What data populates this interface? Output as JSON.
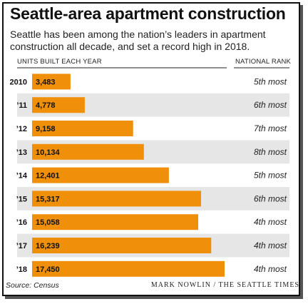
{
  "title": "Seattle-area apartment construction",
  "subtitle": "Seattle has been among the nation’s leaders in apartment construction all decade, and set a record high in 2018.",
  "headers": {
    "units": "UNITS BUILT EACH YEAR",
    "rank": "NATIONAL RANK"
  },
  "source": "Source: Census",
  "credit": "MARK NOWLIN / THE SEATTLE TIMES",
  "colors": {
    "bar": "#F0900A",
    "band": "#E6E6E6"
  },
  "chart_data": {
    "type": "bar",
    "orientation": "horizontal",
    "categories": [
      "2010",
      "’11",
      "’12",
      "’13",
      "’14",
      "’15",
      "’16",
      "’17",
      "’18"
    ],
    "values": [
      3483,
      4778,
      9158,
      10134,
      12401,
      15317,
      15058,
      16239,
      17450
    ],
    "value_labels": [
      "3,483",
      "4,778",
      "9,158",
      "10,134",
      "12,401",
      "15,317",
      "15,058",
      "16,239",
      "17,450"
    ],
    "national_rank": [
      "5th most",
      "6th most",
      "7th most",
      "8th most",
      "5th most",
      "6th most",
      "4th most",
      "4th most",
      "4th most"
    ],
    "xlim": [
      0,
      17450
    ]
  }
}
